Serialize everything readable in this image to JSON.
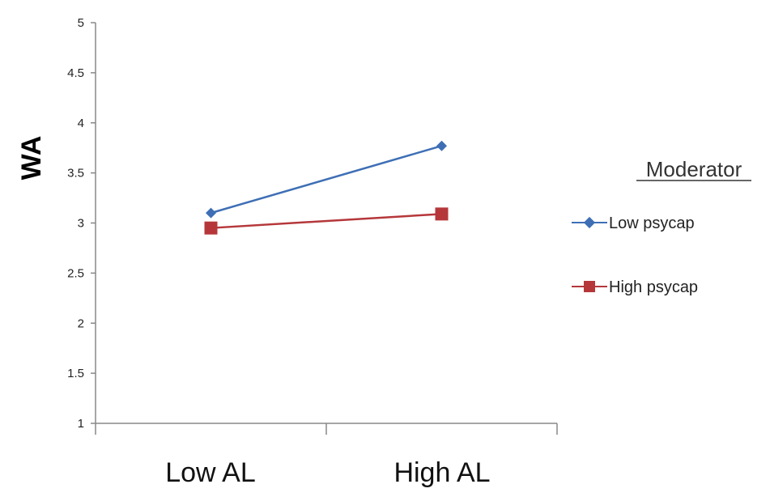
{
  "chart_data": {
    "type": "line",
    "categories": [
      "Low AL",
      "High AL"
    ],
    "ylabel": "WA",
    "xlabel": "",
    "ylim": [
      1,
      5
    ],
    "yticks": [
      "1",
      "1.5",
      "2",
      "2.5",
      "3",
      "3.5",
      "4",
      "4.5",
      "5"
    ],
    "grid": false,
    "legend": {
      "title": "Moderator",
      "position": "right"
    },
    "series": [
      {
        "name": "Low psycap",
        "values": [
          3.1,
          3.77
        ],
        "color": "#3e6fb5",
        "marker": "diamond"
      },
      {
        "name": "High psycap",
        "values": [
          2.95,
          3.09
        ],
        "color": "#b5373a",
        "marker": "square"
      }
    ]
  }
}
